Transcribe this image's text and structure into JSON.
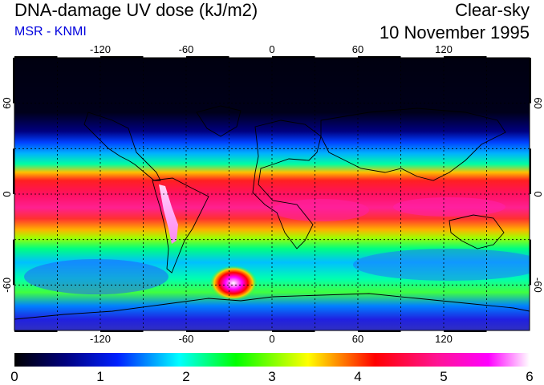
{
  "header": {
    "title": "DNA-damage UV dose (kJ/m2)",
    "subtitle": "MSR - KNMI",
    "condition": "Clear-sky",
    "date": "10 November 1995"
  },
  "map": {
    "longitude_ticks": [
      "-120",
      "-60",
      "0",
      "60",
      "120"
    ],
    "latitude_ticks": [
      "60",
      "0",
      "-60"
    ],
    "grid_longitudes": [
      -150,
      -120,
      -90,
      -60,
      -30,
      0,
      30,
      60,
      90,
      120,
      150
    ],
    "grid_latitudes": [
      60,
      30,
      0,
      -30,
      -60
    ],
    "lon_range": [
      -180,
      180
    ],
    "lat_range": [
      -90,
      90
    ]
  },
  "colorbar": {
    "ticks": [
      "0",
      "1",
      "2",
      "3",
      "4",
      "5",
      "6"
    ],
    "range": [
      0,
      6
    ],
    "colors": [
      "#000000",
      "#00008b",
      "#0000ff",
      "#00ffff",
      "#00ff00",
      "#ffff00",
      "#ff8800",
      "#ff0000",
      "#ff1493",
      "#ff00ff",
      "#ffffff"
    ]
  }
}
